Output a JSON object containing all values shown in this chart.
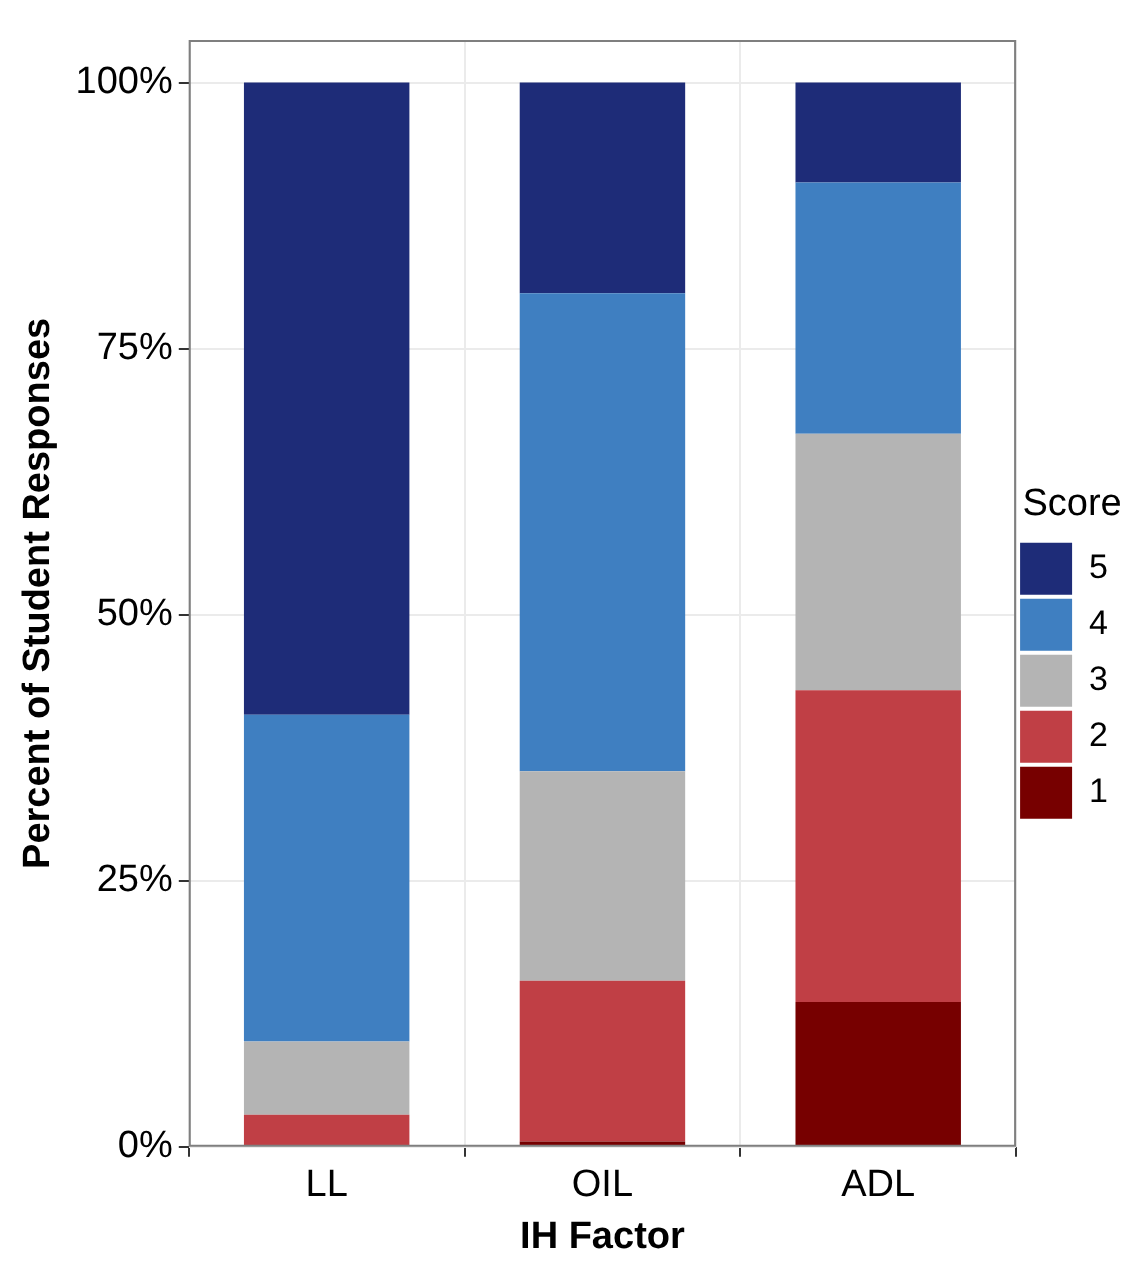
{
  "chart_data": {
    "type": "bar",
    "stacked": true,
    "xlabel": "IH Factor",
    "ylabel": "Percent of Student Responses",
    "legend_title": "Score",
    "legend": "right",
    "grid": true,
    "categories": [
      "LL",
      "OIL",
      "ADL"
    ],
    "series": [
      {
        "name": "1",
        "color": "#770000",
        "values": [
          0,
          0.5,
          13.6
        ]
      },
      {
        "name": "2",
        "color": "#c03f45",
        "values": [
          3.0,
          15.1,
          29.3
        ]
      },
      {
        "name": "3",
        "color": "#b4b4b4",
        "values": [
          6.9,
          19.7,
          24.1
        ]
      },
      {
        "name": "4",
        "color": "#3f7fc1",
        "values": [
          30.7,
          44.9,
          23.6
        ]
      },
      {
        "name": "5",
        "color": "#1e2c78",
        "values": [
          59.4,
          19.8,
          9.4
        ]
      }
    ],
    "ylim": [
      0,
      104
    ],
    "yticks": [
      {
        "value": 0,
        "label": "0%"
      },
      {
        "value": 25,
        "label": "25%"
      },
      {
        "value": 50,
        "label": "50%"
      },
      {
        "value": 75,
        "label": "75%"
      },
      {
        "value": 100,
        "label": "100%"
      }
    ]
  }
}
